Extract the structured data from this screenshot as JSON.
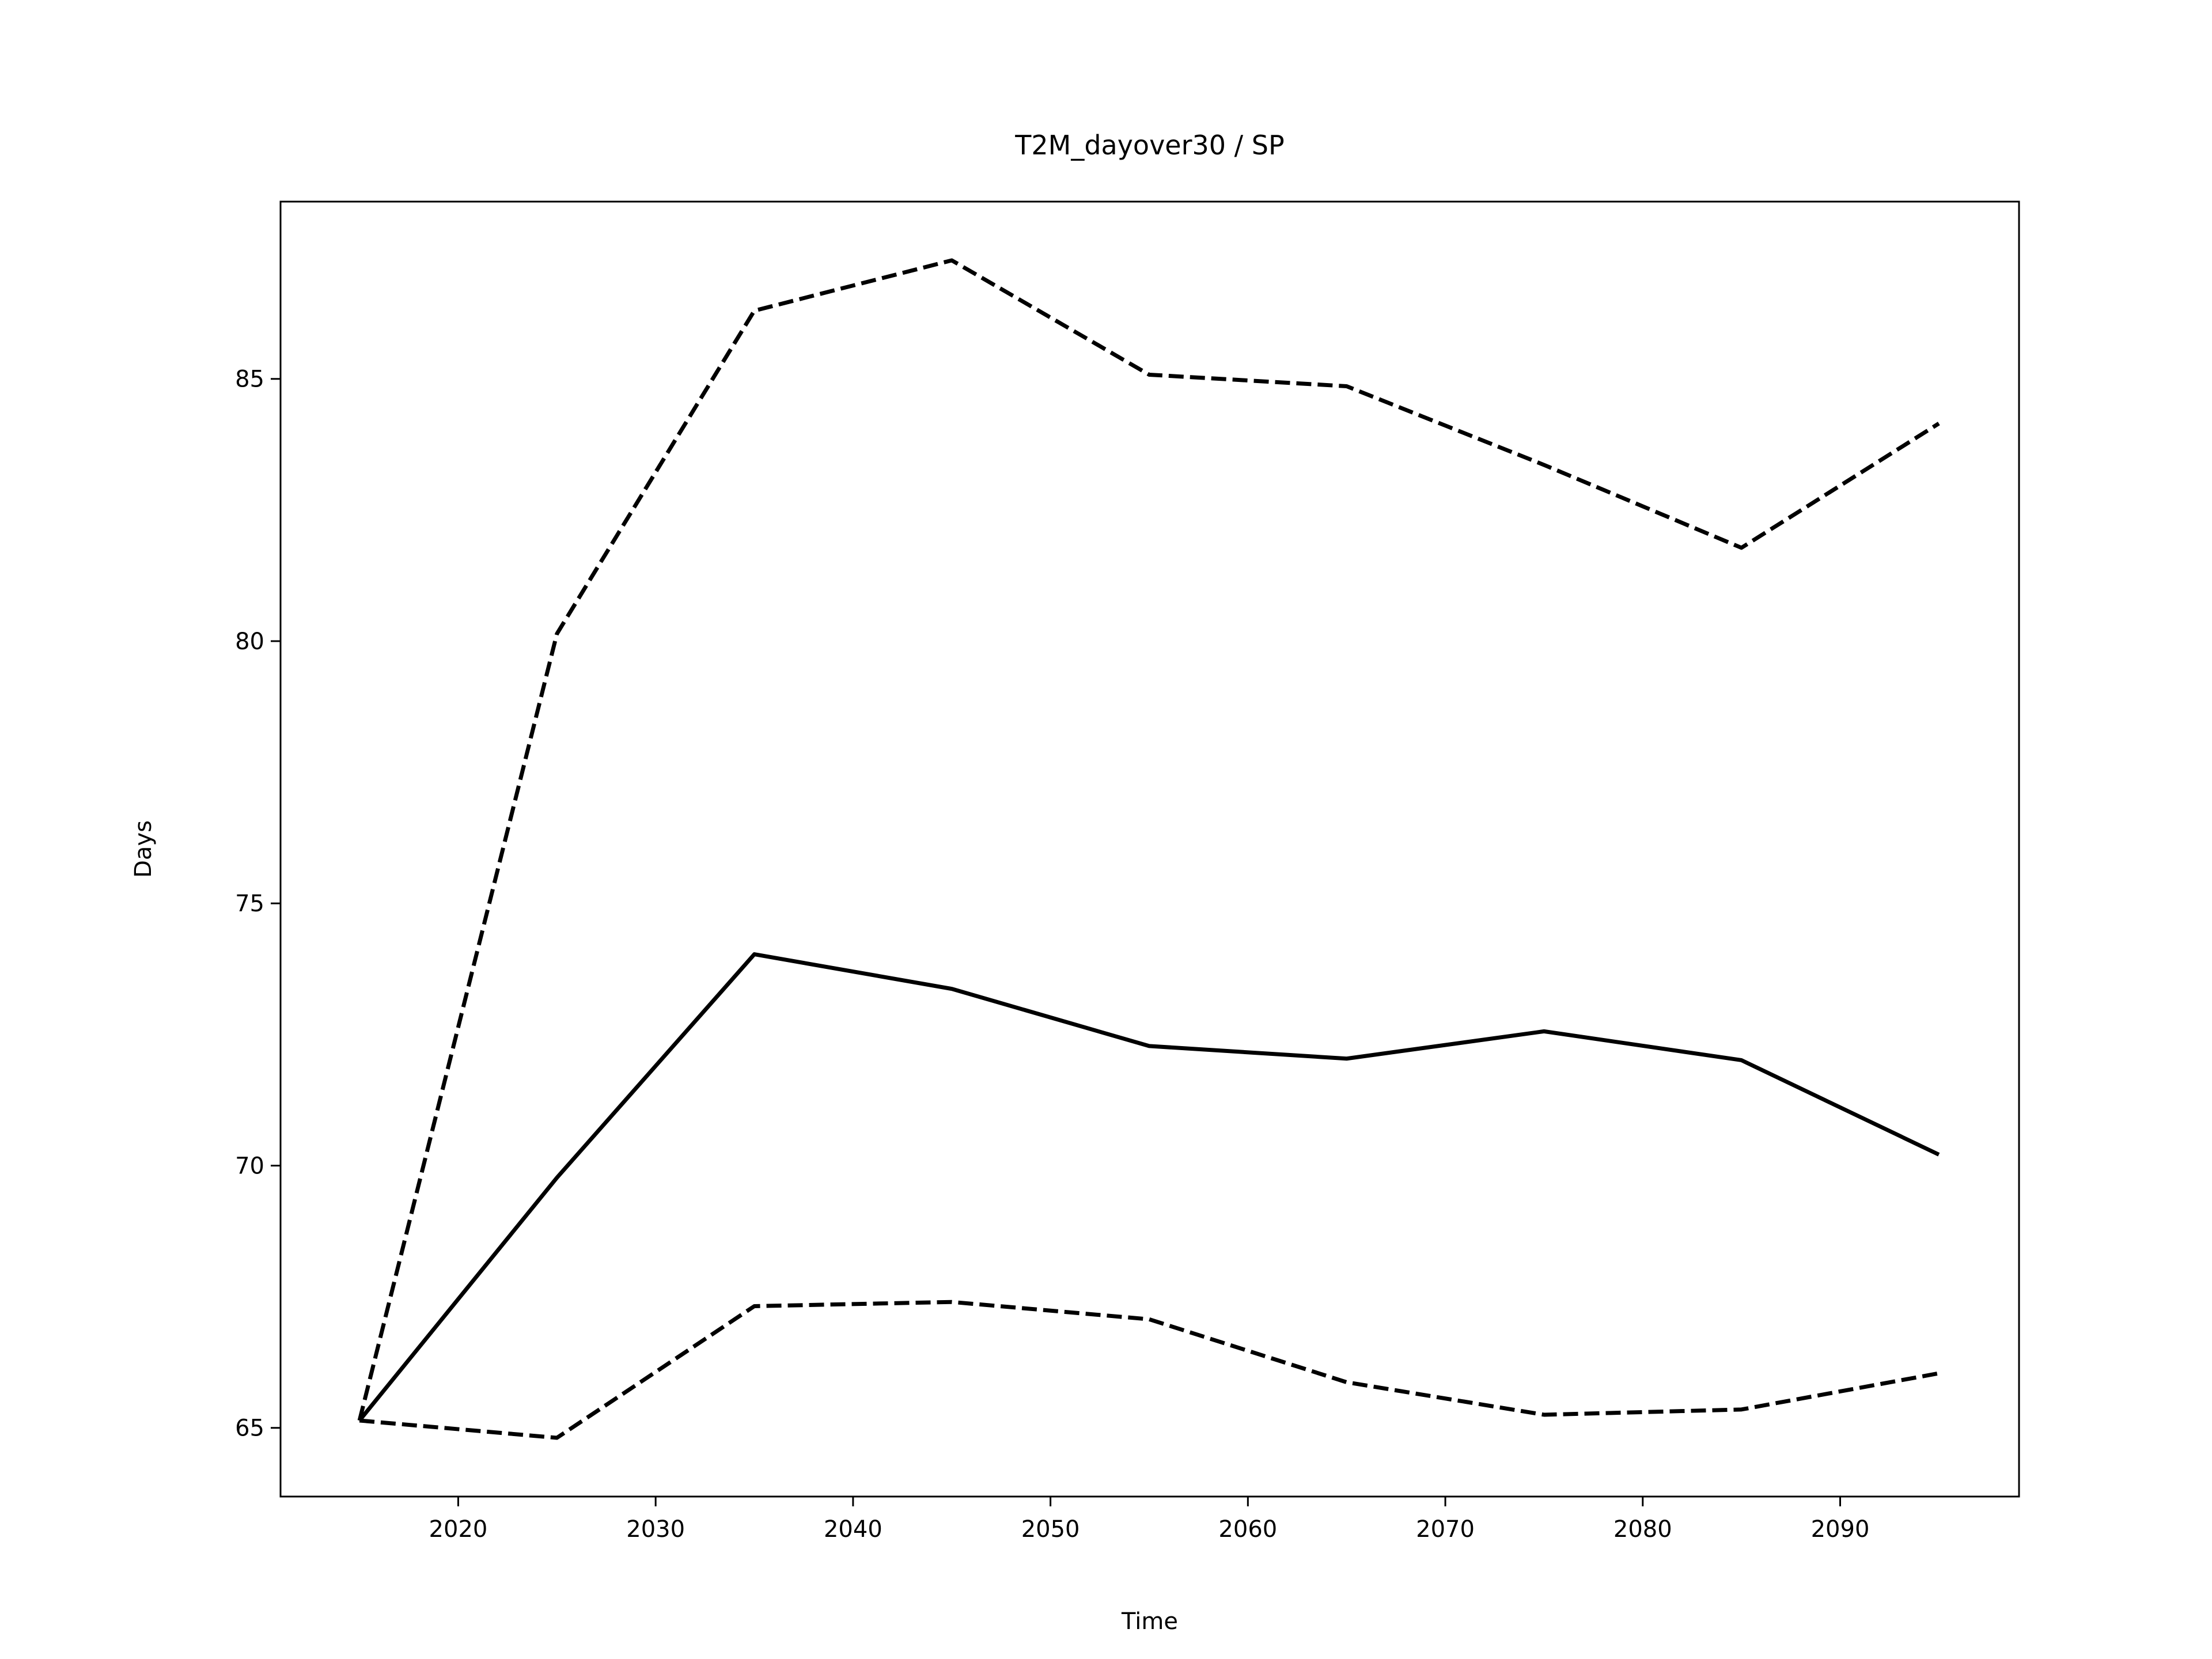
{
  "chart_data": {
    "type": "line",
    "title": "T2M_dayover30 / SP",
    "x_label": "Time",
    "y_label": "Days",
    "x": [
      2015,
      2025,
      2035,
      2045,
      2055,
      2065,
      2075,
      2085,
      2095
    ],
    "series": [
      {
        "color": "#000000",
        "style": "solid",
        "values": [
          65.14,
          69.77,
          74.03,
          73.37,
          72.28,
          72.04,
          72.56,
          72.01,
          70.21
        ]
      },
      {
        "color": "#000000",
        "style": "dashed",
        "values": [
          65.14,
          80.14,
          86.3,
          87.26,
          85.08,
          84.86,
          83.36,
          81.78,
          84.15
        ]
      },
      {
        "color": "#000000",
        "style": "dashed",
        "values": [
          65.14,
          64.81,
          67.32,
          67.4,
          67.07,
          65.87,
          65.25,
          65.35,
          66.04
        ]
      }
    ],
    "xlim": [
      2011.0,
      2099.06
    ],
    "ylim": [
      63.69,
      88.38
    ],
    "xticks": [
      2020,
      2030,
      2040,
      2050,
      2060,
      2070,
      2080,
      2090
    ],
    "yticks": [
      65,
      70,
      75,
      80,
      85
    ],
    "grid": false
  }
}
